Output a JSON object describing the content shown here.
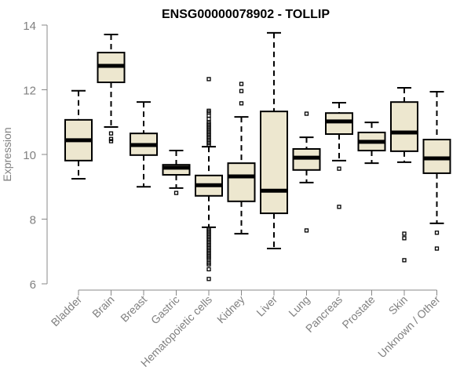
{
  "chart_data": {
    "type": "boxplot",
    "title": "ENSG00000078902 - TOLLIP",
    "xlabel": "",
    "ylabel": "Expression",
    "ylim": [
      6,
      14
    ],
    "yticks": [
      6,
      8,
      10,
      12,
      14
    ],
    "grid": false,
    "colors": {
      "box_fill": "#EDE7CF",
      "box_stroke": "#000000",
      "axis": "#888888",
      "label": "#808080"
    },
    "categories": [
      "Bladder",
      "Brain",
      "Breast",
      "Gastric",
      "Hematopoietic cells",
      "Kidney",
      "Liver",
      "Lung",
      "Pancreas",
      "Prostate",
      "Skin",
      "Unknown / Other"
    ],
    "boxes": [
      {
        "name": "Bladder",
        "whisker_low": 9.25,
        "q1": 9.81,
        "median": 10.44,
        "q3": 11.07,
        "whisker_high": 11.97,
        "outliers": []
      },
      {
        "name": "Brain",
        "whisker_low": 10.85,
        "q1": 12.23,
        "median": 12.74,
        "q3": 13.15,
        "whisker_high": 13.71,
        "outliers": [
          10.65,
          10.48,
          10.41
        ]
      },
      {
        "name": "Breast",
        "whisker_low": 9.0,
        "q1": 9.98,
        "median": 10.29,
        "q3": 10.65,
        "whisker_high": 11.62,
        "outliers": []
      },
      {
        "name": "Gastric",
        "whisker_low": 8.96,
        "q1": 9.37,
        "median": 9.59,
        "q3": 9.68,
        "whisker_high": 10.12,
        "outliers": [
          8.81
        ]
      },
      {
        "name": "Hematopoietic cells",
        "whisker_low": 7.75,
        "q1": 8.72,
        "median": 9.05,
        "q3": 9.35,
        "whisker_high": 10.24,
        "outliers": [
          12.33,
          11.35,
          11.3,
          11.2,
          11.1,
          11.0,
          10.95,
          10.9,
          10.85,
          10.8,
          10.75,
          10.7,
          10.65,
          10.6,
          10.55,
          10.5,
          10.45,
          10.4,
          10.35,
          10.3,
          7.7,
          7.65,
          7.6,
          7.55,
          7.5,
          7.45,
          7.4,
          7.35,
          7.3,
          7.25,
          7.2,
          7.15,
          7.1,
          7.05,
          7.0,
          6.95,
          6.9,
          6.85,
          6.8,
          6.75,
          6.65,
          6.6,
          6.45,
          6.15
        ]
      },
      {
        "name": "Kidney",
        "whisker_low": 7.55,
        "q1": 8.55,
        "median": 9.32,
        "q3": 9.73,
        "whisker_high": 11.16,
        "outliers": [
          12.18,
          11.96,
          11.58
        ]
      },
      {
        "name": "Liver",
        "whisker_low": 7.09,
        "q1": 8.18,
        "median": 8.88,
        "q3": 11.33,
        "whisker_high": 13.76,
        "outliers": []
      },
      {
        "name": "Lung",
        "whisker_low": 9.13,
        "q1": 9.52,
        "median": 9.9,
        "q3": 10.17,
        "whisker_high": 10.53,
        "outliers": [
          11.26,
          7.65
        ]
      },
      {
        "name": "Pancreas",
        "whisker_low": 9.81,
        "q1": 10.63,
        "median": 11.02,
        "q3": 11.28,
        "whisker_high": 11.6,
        "outliers": [
          9.56,
          8.38
        ]
      },
      {
        "name": "Prostate",
        "whisker_low": 9.73,
        "q1": 10.12,
        "median": 10.39,
        "q3": 10.68,
        "whisker_high": 10.99,
        "outliers": []
      },
      {
        "name": "Skin",
        "whisker_low": 9.76,
        "q1": 10.1,
        "median": 10.68,
        "q3": 11.62,
        "whisker_high": 12.06,
        "outliers": [
          7.55,
          7.41,
          6.73
        ]
      },
      {
        "name": "Unknown / Other",
        "whisker_low": 7.87,
        "q1": 9.42,
        "median": 9.88,
        "q3": 10.46,
        "whisker_high": 11.94,
        "outliers": [
          7.58,
          7.09
        ]
      }
    ]
  }
}
